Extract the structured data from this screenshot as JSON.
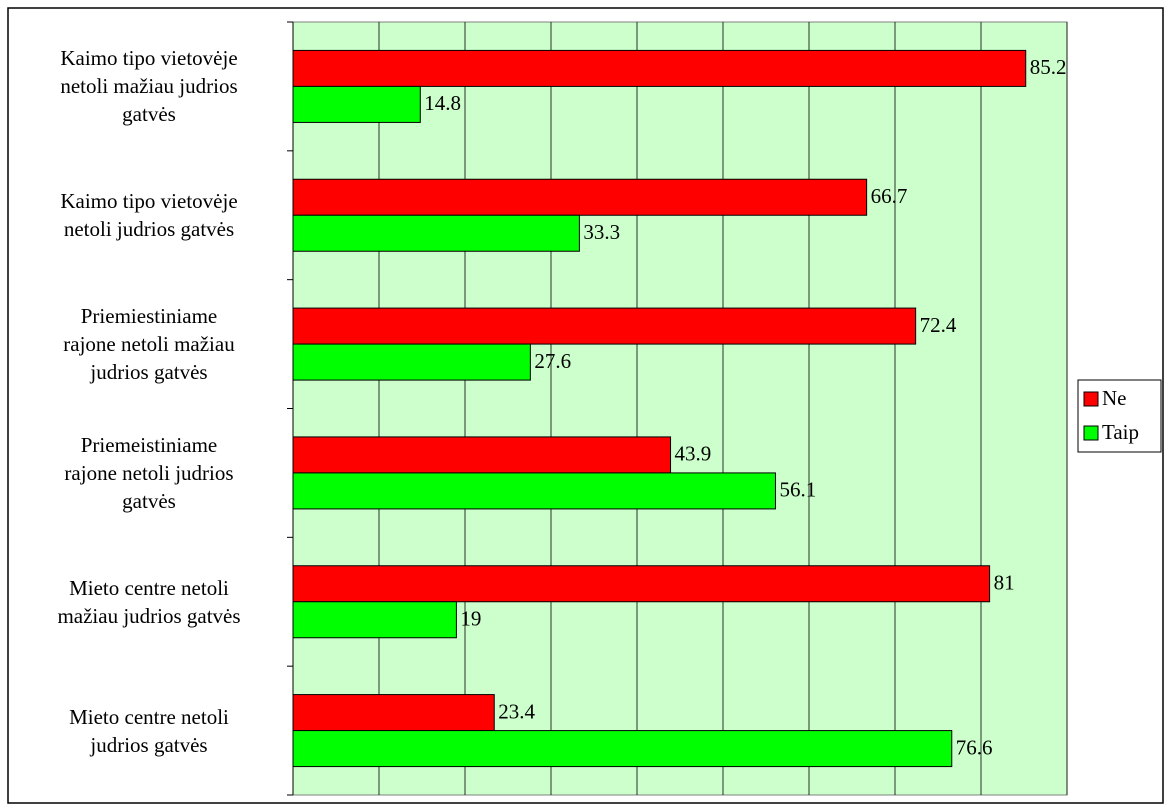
{
  "chart_data": {
    "type": "bar",
    "orientation": "horizontal",
    "categories": [
      "Kaimo tipo vietovėje\nnetoli mažiau judrios\ngatvės",
      "Kaimo tipo vietovėje\nnetoli judrios gatvės",
      "Priemiestiniame\nrajone netoli mažiau\njudrios gatvės",
      "Priemeistiniame\nrajone netoli judrios\ngatvės",
      "Mieto centre netoli\nmažiau judrios gatvės",
      "Mieto centre netoli\njudrios gatvės"
    ],
    "series": [
      {
        "name": "Ne",
        "color": "#ff0000",
        "values": [
          85.2,
          66.7,
          72.4,
          43.9,
          81,
          23.4
        ]
      },
      {
        "name": "Taip",
        "color": "#00ff00",
        "values": [
          14.8,
          33.3,
          27.6,
          56.1,
          19,
          76.6
        ]
      }
    ],
    "xlim": [
      0,
      90
    ],
    "xticks": [
      0,
      10,
      20,
      30,
      40,
      50,
      60,
      70,
      80,
      90
    ],
    "grid": true,
    "plot_background": "#ccffcc",
    "legend": "right"
  }
}
